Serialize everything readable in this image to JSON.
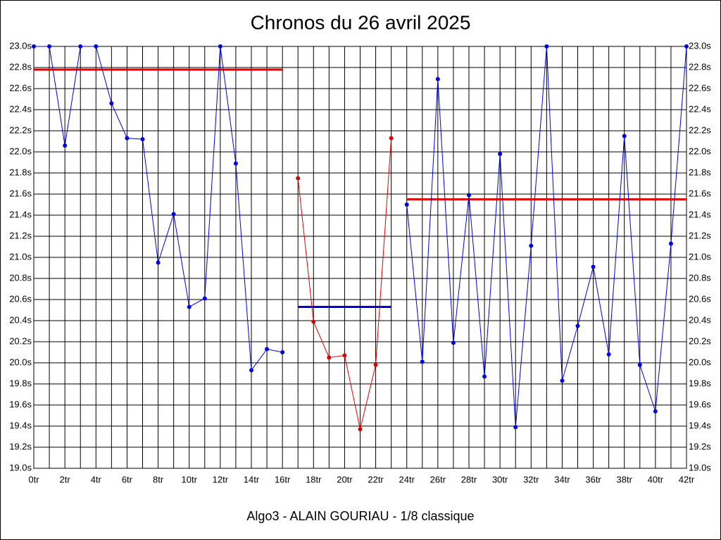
{
  "chart_data": {
    "type": "line",
    "title": "Chronos du 26 avril 2025",
    "subtitle": "Algo3 - ALAIN GOURIAU - 1/8 classique",
    "x": [
      0,
      1,
      2,
      3,
      4,
      5,
      6,
      7,
      8,
      9,
      10,
      11,
      12,
      13,
      14,
      15,
      16,
      17,
      18,
      19,
      20,
      21,
      22,
      23,
      24,
      25,
      26,
      27,
      28,
      29,
      30,
      31,
      32,
      33,
      34,
      35,
      36,
      37,
      38,
      39,
      40,
      41,
      42
    ],
    "series": [
      {
        "color": "#0000e0",
        "values": [
          23.0,
          23.0,
          22.06,
          23.0,
          23.0,
          22.46,
          22.13,
          22.12,
          20.95,
          21.41,
          20.53,
          20.61,
          23.0,
          21.89,
          19.93,
          20.13,
          20.1,
          null,
          null,
          null,
          null,
          null,
          null,
          null,
          21.5,
          20.01,
          22.69,
          20.19,
          21.59,
          19.87,
          21.98,
          19.39,
          21.11,
          23.0,
          19.83,
          20.35,
          20.91,
          20.08,
          22.15,
          19.98,
          19.54,
          21.13,
          23.0
        ]
      },
      {
        "color": "#e00000",
        "values": [
          null,
          null,
          null,
          null,
          null,
          null,
          null,
          null,
          null,
          null,
          null,
          null,
          null,
          null,
          null,
          null,
          null,
          21.75,
          20.39,
          20.05,
          20.07,
          19.37,
          19.98,
          22.13,
          null,
          null,
          null,
          null,
          null,
          null,
          null,
          null,
          null,
          null,
          null,
          null,
          null,
          null,
          null,
          null,
          null,
          null,
          null
        ]
      }
    ],
    "averages": [
      {
        "x": [
          0,
          16
        ],
        "value": 22.78,
        "color": "#e00000"
      },
      {
        "x": [
          17,
          23
        ],
        "value": 20.53,
        "color": "#0000e0"
      },
      {
        "x": [
          24,
          42
        ],
        "value": 21.55,
        "color": "#e00000"
      }
    ],
    "xlim": [
      0,
      42
    ],
    "ylim": [
      19.0,
      23.0
    ],
    "xticks": [
      {
        "value": 0,
        "label": "0tr"
      },
      {
        "value": 2,
        "label": "2tr"
      },
      {
        "value": 4,
        "label": "4tr"
      },
      {
        "value": 6,
        "label": "6tr"
      },
      {
        "value": 8,
        "label": "8tr"
      },
      {
        "value": 10,
        "label": "10tr"
      },
      {
        "value": 12,
        "label": "12tr"
      },
      {
        "value": 14,
        "label": "14tr"
      },
      {
        "value": 16,
        "label": "16tr"
      },
      {
        "value": 18,
        "label": "18tr"
      },
      {
        "value": 20,
        "label": "20tr"
      },
      {
        "value": 22,
        "label": "22tr"
      },
      {
        "value": 24,
        "label": "24tr"
      },
      {
        "value": 26,
        "label": "26tr"
      },
      {
        "value": 28,
        "label": "28tr"
      },
      {
        "value": 30,
        "label": "30tr"
      },
      {
        "value": 32,
        "label": "32tr"
      },
      {
        "value": 34,
        "label": "34tr"
      },
      {
        "value": 36,
        "label": "36tr"
      },
      {
        "value": 38,
        "label": "38tr"
      },
      {
        "value": 40,
        "label": "40tr"
      },
      {
        "value": 42,
        "label": "42tr"
      }
    ],
    "xminor_ticks": [
      1,
      3,
      5,
      7,
      9,
      11,
      13,
      15,
      17,
      19,
      21,
      23,
      25,
      27,
      29,
      31,
      33,
      35,
      37,
      39,
      41
    ],
    "yticks": [
      {
        "value": 19.0,
        "label": "19.0s"
      },
      {
        "value": 19.2,
        "label": "19.2s"
      },
      {
        "value": 19.4,
        "label": "19.4s"
      },
      {
        "value": 19.6,
        "label": "19.6s"
      },
      {
        "value": 19.8,
        "label": "19.8s"
      },
      {
        "value": 20.0,
        "label": "20.0s"
      },
      {
        "value": 20.2,
        "label": "20.2s"
      },
      {
        "value": 20.4,
        "label": "20.4s"
      },
      {
        "value": 20.6,
        "label": "20.6s"
      },
      {
        "value": 20.8,
        "label": "20.8s"
      },
      {
        "value": 21.0,
        "label": "21.0s"
      },
      {
        "value": 21.2,
        "label": "21.2s"
      },
      {
        "value": 21.4,
        "label": "21.4s"
      },
      {
        "value": 21.6,
        "label": "21.6s"
      },
      {
        "value": 21.8,
        "label": "21.8s"
      },
      {
        "value": 22.0,
        "label": "22.0s"
      },
      {
        "value": 22.2,
        "label": "22.2s"
      },
      {
        "value": 22.4,
        "label": "22.4s"
      },
      {
        "value": 22.6,
        "label": "22.6s"
      },
      {
        "value": 22.8,
        "label": "22.8s"
      },
      {
        "value": 23.0,
        "label": "23.0s"
      }
    ],
    "grid": true
  }
}
